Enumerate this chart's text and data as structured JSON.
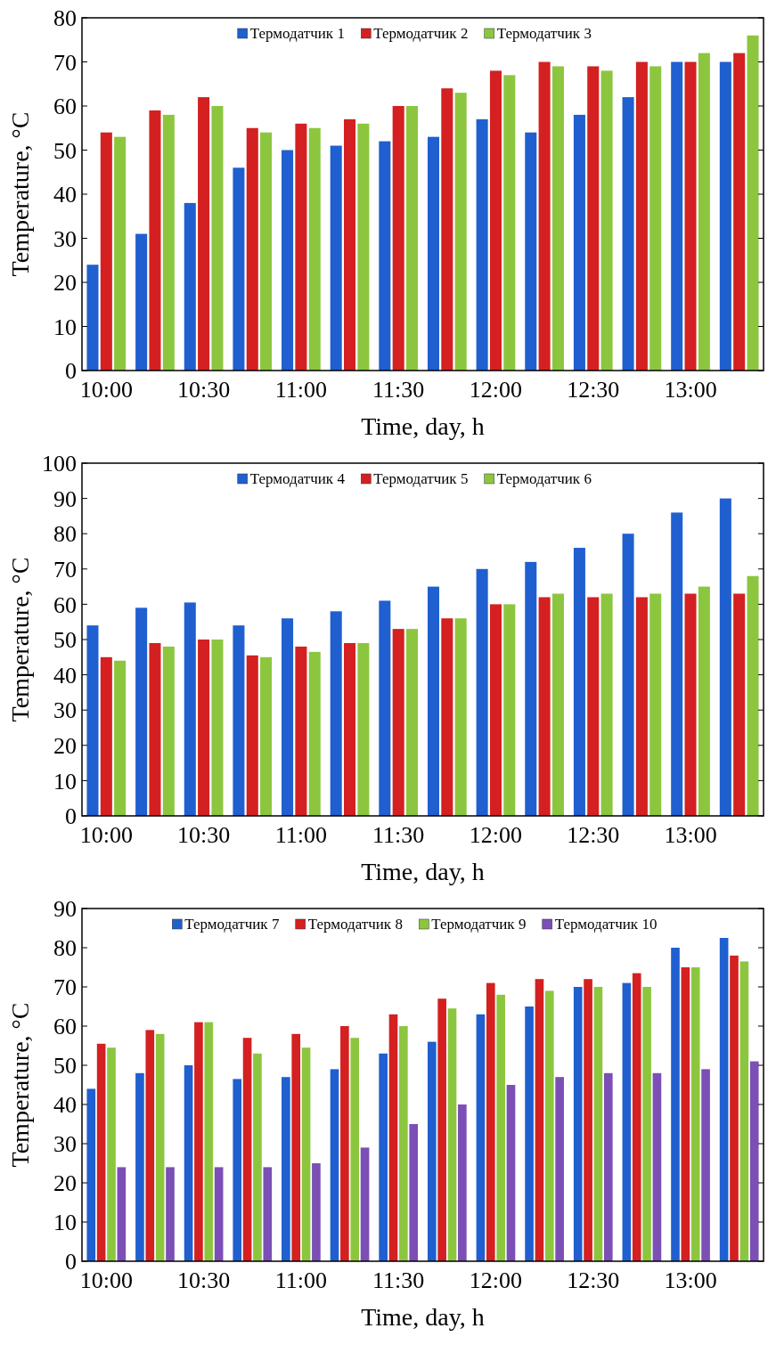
{
  "chart_data": [
    {
      "type": "bar",
      "xlabel": "Time, day, h",
      "ylabel": "Temperature, °C",
      "categories": [
        "10:00",
        null,
        "10:30",
        null,
        "11:00",
        null,
        "11:30",
        null,
        "12:00",
        null,
        "12:30",
        null,
        "13:00",
        null
      ],
      "ylim": [
        0,
        80
      ],
      "yticks": [
        0,
        10,
        20,
        30,
        40,
        50,
        60,
        70,
        80
      ],
      "legend": "top",
      "grid": false,
      "series": [
        {
          "name": "Термодатчик 1",
          "color": "#1f5fd0",
          "values": [
            24,
            31,
            38,
            46,
            50,
            51,
            52,
            53,
            57,
            54,
            58,
            62,
            70,
            70
          ]
        },
        {
          "name": "Термодатчик 2",
          "color": "#d42020",
          "values": [
            54,
            59,
            62,
            55,
            56,
            57,
            60,
            64,
            68,
            70,
            69,
            70,
            70,
            72
          ]
        },
        {
          "name": "Термодатчик 3",
          "color": "#8cc63f",
          "values": [
            53,
            58,
            60,
            54,
            55,
            56,
            60,
            63,
            67,
            69,
            68,
            69,
            72,
            76
          ]
        }
      ]
    },
    {
      "type": "bar",
      "xlabel": "Time, day, h",
      "ylabel": "Temperature, °C",
      "categories": [
        "10:00",
        null,
        "10:30",
        null,
        "11:00",
        null,
        "11:30",
        null,
        "12:00",
        null,
        "12:30",
        null,
        "13:00",
        null
      ],
      "ylim": [
        0,
        100
      ],
      "yticks": [
        0,
        10,
        20,
        30,
        40,
        50,
        60,
        70,
        80,
        90,
        100
      ],
      "legend": "top",
      "grid": false,
      "series": [
        {
          "name": "Термодатчик 4",
          "color": "#1f5fd0",
          "values": [
            54,
            59,
            60.5,
            54,
            56,
            58,
            61,
            65,
            70,
            72,
            76,
            80,
            86,
            90
          ]
        },
        {
          "name": "Термодатчик 5",
          "color": "#d42020",
          "values": [
            45,
            49,
            50,
            45.5,
            48,
            49,
            53,
            56,
            60,
            62,
            62,
            62,
            63,
            63
          ]
        },
        {
          "name": "Термодатчик 6",
          "color": "#8cc63f",
          "values": [
            44,
            48,
            50,
            45,
            46.5,
            49,
            53,
            56,
            60,
            63,
            63,
            63,
            65,
            68
          ]
        }
      ]
    },
    {
      "type": "bar",
      "xlabel": "Time, day, h",
      "ylabel": "Temperature, °C",
      "categories": [
        "10:00",
        null,
        "10:30",
        null,
        "11:00",
        null,
        "11:30",
        null,
        "12:00",
        null,
        "12:30",
        null,
        "13:00",
        null
      ],
      "ylim": [
        0,
        90
      ],
      "yticks": [
        0,
        10,
        20,
        30,
        40,
        50,
        60,
        70,
        80,
        90
      ],
      "legend": "top",
      "grid": false,
      "series": [
        {
          "name": "Термодатчик 7",
          "color": "#1f5fd0",
          "values": [
            44,
            48,
            50,
            46.5,
            47,
            49,
            53,
            56,
            63,
            65,
            70,
            71,
            80,
            82.5
          ]
        },
        {
          "name": "Термодатчик 8",
          "color": "#d42020",
          "values": [
            55.5,
            59,
            61,
            57,
            58,
            60,
            63,
            67,
            71,
            72,
            72,
            73.5,
            75,
            78
          ]
        },
        {
          "name": "Термодатчик 9",
          "color": "#8cc63f",
          "values": [
            54.5,
            58,
            61,
            53,
            54.5,
            57,
            60,
            64.5,
            68,
            69,
            70,
            70,
            75,
            76.5
          ]
        },
        {
          "name": "Термодатчик 10",
          "color": "#7b4fb5",
          "values": [
            24,
            24,
            24,
            24,
            25,
            29,
            35,
            40,
            45,
            47,
            48,
            48,
            49,
            51
          ]
        }
      ]
    }
  ]
}
